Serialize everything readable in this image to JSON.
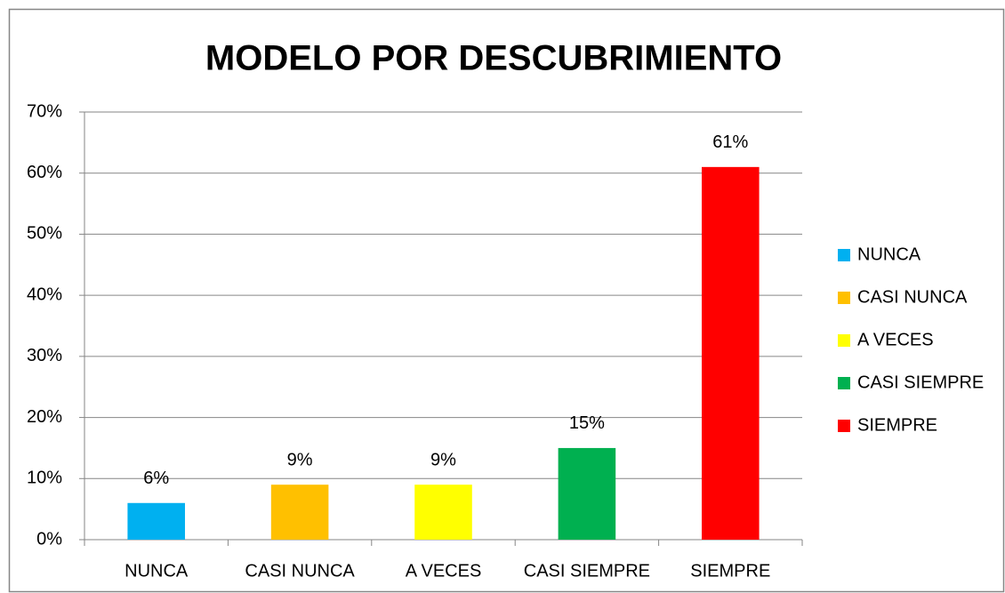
{
  "chart_data": {
    "type": "bar",
    "title": "MODELO POR DESCUBRIMIENTO",
    "categories": [
      "NUNCA",
      "CASI NUNCA",
      "A VECES",
      "CASI SIEMPRE",
      "SIEMPRE"
    ],
    "values": [
      6,
      9,
      9,
      15,
      61
    ],
    "value_labels": [
      "6%",
      "9%",
      "9%",
      "15%",
      "61%"
    ],
    "colors": [
      "#00b0f0",
      "#ffc000",
      "#ffff00",
      "#00b050",
      "#ff0000"
    ],
    "ylim": [
      0,
      70
    ],
    "yticks": [
      {
        "value": 0,
        "label": "0%"
      },
      {
        "value": 10,
        "label": "10%"
      },
      {
        "value": 20,
        "label": "20%"
      },
      {
        "value": 30,
        "label": "30%"
      },
      {
        "value": 40,
        "label": "40%"
      },
      {
        "value": 50,
        "label": "50%"
      },
      {
        "value": 60,
        "label": "60%"
      },
      {
        "value": 70,
        "label": "70%"
      }
    ],
    "grid": true,
    "legend": "right"
  }
}
